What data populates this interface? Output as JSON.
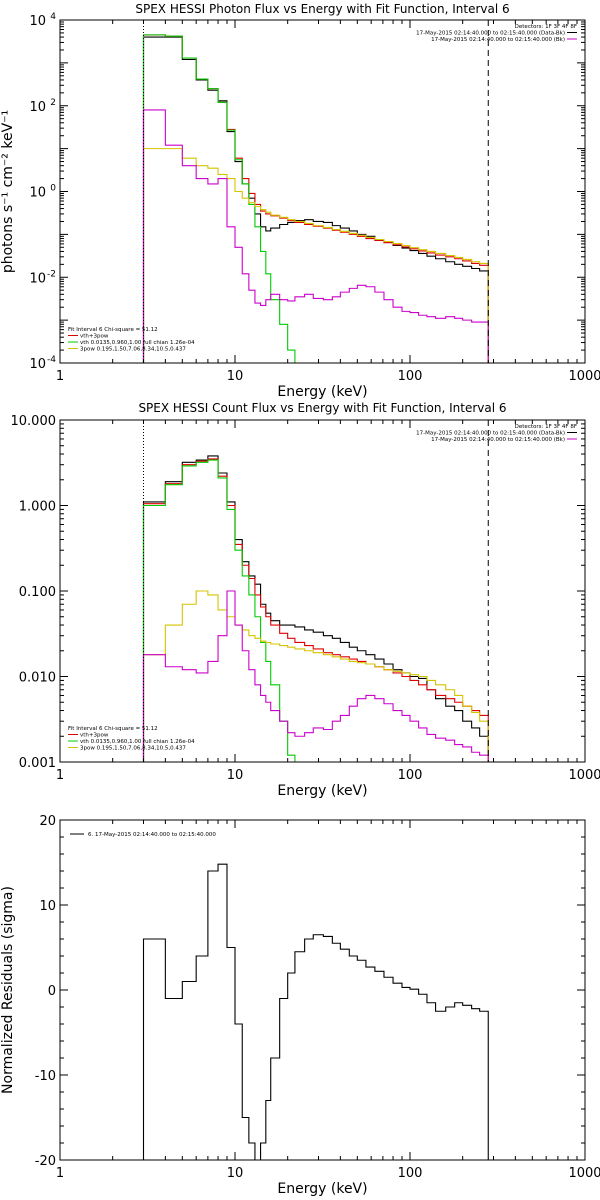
{
  "colors": {
    "observed": "#000000",
    "total": "#dd0000",
    "thermal": "#00cc00",
    "powerlaw": "#d4c400",
    "background": "#cc00cc"
  },
  "chart_data": [
    {
      "type": "line",
      "title": "SPEX HESSI Photon Flux vs Energy with Fit Function, Interval 6",
      "xlabel": "Energy (keV)",
      "ylabel": "photons s⁻¹ cm⁻² keV⁻¹",
      "xscale": "log",
      "yscale": "log",
      "xlim": [
        1,
        1000
      ],
      "ylim": [
        0.0001,
        10000
      ],
      "xticks": [
        {
          "v": 1,
          "t": "1"
        },
        {
          "v": 10,
          "t": "10"
        },
        {
          "v": 100,
          "t": "100"
        },
        {
          "v": 1000,
          "t": "1000"
        }
      ],
      "yticks": [
        {
          "v": 0.0001,
          "b": "10",
          "e": "-4"
        },
        {
          "v": 0.01,
          "b": "10",
          "e": "-2"
        },
        {
          "v": 1,
          "b": "10",
          "e": "0"
        },
        {
          "v": 100,
          "b": "10",
          "e": "2"
        },
        {
          "v": 10000,
          "b": "10",
          "e": "4"
        }
      ],
      "vlines": [
        {
          "x": 3,
          "style": "dotted"
        },
        {
          "x": 280,
          "style": "dashed"
        }
      ],
      "legend_tr": {
        "header": "Detectors: 1F 3F 4F 8F",
        "entries": [
          {
            "text": "17-May-2015 02:14:40.000 to 02:15:40.000 (Data-Bk)",
            "color": "#000000"
          },
          {
            "text": "17-May-2015 02:14:40.000 to 02:15:40.000 (Bk)",
            "color": "#cc00cc"
          }
        ]
      },
      "legend_bl": {
        "header": "Fit Interval 6    Chi-square = 51.12",
        "entries": [
          {
            "text": "vth+3pow",
            "color": "#dd0000"
          },
          {
            "text": "vth 0.0135,0.960,1.00  full chian 1.26e-04",
            "color": "#00cc00"
          },
          {
            "text": "3pow 0.195,1.50,7.06,8.34,10.5,0.437",
            "color": "#d4c400"
          }
        ]
      },
      "edges": [
        3,
        4,
        5,
        6,
        7,
        8,
        9,
        10,
        11,
        12,
        13,
        14,
        15,
        16,
        18,
        20,
        22,
        25,
        28,
        32,
        36,
        40,
        45,
        50,
        56,
        63,
        71,
        80,
        90,
        100,
        112,
        125,
        140,
        160,
        180,
        200,
        225,
        250,
        280
      ],
      "series": [
        {
          "name": "Data-Bk",
          "color": "#000000",
          "values": [
            4000,
            4000,
            1200,
            400,
            230,
            130,
            25,
            5,
            1.5,
            0.7,
            0.3,
            0.15,
            0.12,
            0.14,
            0.17,
            0.19,
            0.21,
            0.22,
            0.2,
            0.19,
            0.16,
            0.14,
            0.12,
            0.1,
            0.09,
            0.075,
            0.065,
            0.055,
            0.048,
            0.042,
            0.036,
            0.031,
            0.027,
            0.023,
            0.02,
            0.018,
            0.016,
            0.014
          ]
        },
        {
          "name": "vth+3pow",
          "color": "#dd0000",
          "values": [
            4500,
            4200,
            1300,
            420,
            250,
            120,
            28,
            6,
            2,
            0.9,
            0.5,
            0.35,
            0.3,
            0.27,
            0.24,
            0.21,
            0.19,
            0.17,
            0.155,
            0.14,
            0.125,
            0.112,
            0.1,
            0.09,
            0.08,
            0.072,
            0.064,
            0.057,
            0.051,
            0.046,
            0.041,
            0.037,
            0.033,
            0.03,
            0.027,
            0.024,
            0.021,
            0.019
          ]
        },
        {
          "name": "vth",
          "color": "#00cc00",
          "values": [
            4500,
            4200,
            1300,
            420,
            250,
            120,
            27,
            5.5,
            1.5,
            0.5,
            0.15,
            0.04,
            0.012,
            0.003,
            0.0008,
            0.0002,
            5e-05
          ]
        },
        {
          "name": "3pow",
          "color": "#d4c400",
          "values": [
            10,
            10,
            6,
            4,
            3.5,
            2.5,
            2,
            1,
            0.7,
            0.55,
            0.45,
            0.38,
            0.33,
            0.28,
            0.25,
            0.22,
            0.2,
            0.18,
            0.16,
            0.145,
            0.13,
            0.118,
            0.105,
            0.095,
            0.085,
            0.076,
            0.068,
            0.061,
            0.055,
            0.049,
            0.044,
            0.04,
            0.036,
            0.032,
            0.029,
            0.026,
            0.023,
            0.021
          ]
        },
        {
          "name": "Bk",
          "color": "#cc00cc",
          "values": [
            80,
            12,
            4,
            2,
            1.5,
            2,
            0.15,
            0.05,
            0.012,
            0.005,
            0.0025,
            0.0022,
            0.003,
            0.004,
            0.003,
            0.0028,
            0.0035,
            0.004,
            0.0032,
            0.003,
            0.0035,
            0.0045,
            0.0055,
            0.0065,
            0.006,
            0.0045,
            0.003,
            0.002,
            0.0016,
            0.0015,
            0.0013,
            0.0012,
            0.0011,
            0.0012,
            0.0011,
            0.001,
            0.0009,
            0.0009
          ]
        }
      ]
    },
    {
      "type": "line",
      "title": "SPEX HESSI Count Flux vs Energy with Fit Function, Interval 6",
      "xlabel": "Energy (keV)",
      "xscale": "log",
      "yscale": "log",
      "xlim": [
        1,
        1000
      ],
      "ylim": [
        0.001,
        10
      ],
      "xticks": [
        {
          "v": 1,
          "t": "1"
        },
        {
          "v": 10,
          "t": "10"
        },
        {
          "v": 100,
          "t": "100"
        },
        {
          "v": 1000,
          "t": "1000"
        }
      ],
      "yticks": [
        {
          "v": 0.001,
          "t": "0.001"
        },
        {
          "v": 0.01,
          "t": "0.010"
        },
        {
          "v": 0.1,
          "t": "0.100"
        },
        {
          "v": 1,
          "t": "1.000"
        },
        {
          "v": 10,
          "t": "10.000"
        }
      ],
      "vlines": [
        {
          "x": 3,
          "style": "dotted"
        },
        {
          "x": 280,
          "style": "dashed"
        }
      ],
      "legend_tr": {
        "header": "Detectors: 1F 3F 4F 8F",
        "entries": [
          {
            "text": "17-May-2015 02:14:40.000 to 02:15:40.000 (Data-Bk)",
            "color": "#000000"
          },
          {
            "text": "17-May-2015 02:14:40.000 to 02:15:40.000 (Bk)",
            "color": "#cc00cc"
          }
        ]
      },
      "legend_bl": {
        "header": "Fit Interval 6    Chi-square = 51.12",
        "entries": [
          {
            "text": "vth+3pow",
            "color": "#dd0000"
          },
          {
            "text": "vth 0.0135,0.960,1.00  full chian 1.26e-04",
            "color": "#00cc00"
          },
          {
            "text": "3pow 0.195,1.50,7.06,8.34,10.5,0.437",
            "color": "#d4c400"
          }
        ]
      },
      "edges": [
        3,
        4,
        5,
        6,
        7,
        8,
        9,
        10,
        11,
        12,
        13,
        14,
        15,
        16,
        18,
        20,
        22,
        25,
        28,
        32,
        36,
        40,
        45,
        50,
        56,
        63,
        71,
        80,
        90,
        100,
        112,
        125,
        140,
        160,
        180,
        200,
        225,
        250,
        280
      ],
      "series": [
        {
          "name": "Data-Bk",
          "color": "#000000",
          "values": [
            1.1,
            1.9,
            3.2,
            3.4,
            3.8,
            2.4,
            1.1,
            0.4,
            0.22,
            0.15,
            0.12,
            0.07,
            0.055,
            0.045,
            0.04,
            0.04,
            0.038,
            0.035,
            0.033,
            0.03,
            0.028,
            0.025,
            0.022,
            0.02,
            0.018,
            0.016,
            0.014,
            0.012,
            0.011,
            0.01,
            0.0095,
            0.007,
            0.0055,
            0.0045,
            0.004,
            0.003,
            0.0025,
            0.002
          ]
        },
        {
          "name": "vth+3pow",
          "color": "#dd0000",
          "values": [
            1.05,
            1.8,
            3.0,
            3.3,
            3.5,
            2.2,
            1.0,
            0.35,
            0.2,
            0.14,
            0.09,
            0.065,
            0.05,
            0.04,
            0.032,
            0.028,
            0.025,
            0.023,
            0.021,
            0.019,
            0.018,
            0.017,
            0.016,
            0.015,
            0.014,
            0.013,
            0.012,
            0.011,
            0.01,
            0.009,
            0.008,
            0.007,
            0.006,
            0.0055,
            0.005,
            0.0045,
            0.004,
            0.0035
          ]
        },
        {
          "name": "vth",
          "color": "#00cc00",
          "values": [
            1.0,
            1.75,
            2.9,
            3.2,
            3.4,
            2.1,
            0.9,
            0.3,
            0.15,
            0.09,
            0.05,
            0.025,
            0.015,
            0.008,
            0.003,
            0.0012,
            0.0005
          ]
        },
        {
          "name": "3pow",
          "color": "#d4c400",
          "values": [
            0.018,
            0.04,
            0.07,
            0.1,
            0.09,
            0.06,
            0.05,
            0.04,
            0.035,
            0.03,
            0.028,
            0.026,
            0.025,
            0.024,
            0.023,
            0.022,
            0.021,
            0.02,
            0.019,
            0.018,
            0.017,
            0.016,
            0.015,
            0.0145,
            0.014,
            0.013,
            0.012,
            0.0115,
            0.011,
            0.0105,
            0.01,
            0.009,
            0.008,
            0.007,
            0.006,
            0.0045,
            0.0038,
            0.003
          ]
        },
        {
          "name": "Bk",
          "color": "#cc00cc",
          "values": [
            0.018,
            0.013,
            0.012,
            0.011,
            0.015,
            0.03,
            0.1,
            0.04,
            0.02,
            0.012,
            0.008,
            0.006,
            0.005,
            0.004,
            0.003,
            0.0022,
            0.002,
            0.0022,
            0.0025,
            0.0024,
            0.003,
            0.0035,
            0.0045,
            0.0055,
            0.006,
            0.0055,
            0.0048,
            0.004,
            0.0035,
            0.003,
            0.0025,
            0.0021,
            0.0019,
            0.0018,
            0.0016,
            0.0015,
            0.0013,
            0.0012
          ]
        }
      ]
    },
    {
      "type": "line",
      "title": "",
      "xlabel": "Energy (keV)",
      "ylabel": "Normalized Residuals (sigma)",
      "xscale": "log",
      "yscale": "linear",
      "xlim": [
        1,
        1000
      ],
      "ylim": [
        -20,
        20
      ],
      "xticks": [
        {
          "v": 1,
          "t": "1"
        },
        {
          "v": 10,
          "t": "10"
        },
        {
          "v": 100,
          "t": "100"
        },
        {
          "v": 1000,
          "t": "1000"
        }
      ],
      "yticks": [
        {
          "v": -20,
          "t": "-20"
        },
        {
          "v": -10,
          "t": "-10"
        },
        {
          "v": 0,
          "t": "0"
        },
        {
          "v": 10,
          "t": "10"
        },
        {
          "v": 20,
          "t": "20"
        }
      ],
      "legend_tl": {
        "entries": [
          {
            "text": "6. 17-May-2015 02:14:40.000 to 02:15:40.000",
            "color": "#000000"
          }
        ]
      },
      "edges": [
        3,
        4,
        5,
        6,
        7,
        8,
        9,
        10,
        11,
        12,
        13,
        14,
        15,
        16,
        18,
        20,
        22,
        25,
        28,
        32,
        36,
        40,
        45,
        50,
        56,
        63,
        71,
        80,
        90,
        100,
        112,
        125,
        140,
        160,
        180,
        200,
        225,
        250,
        280
      ],
      "series": [
        {
          "name": "residual",
          "color": "#000000",
          "values": [
            6,
            -1,
            1,
            4,
            14,
            14.8,
            5,
            -4,
            -15,
            -18,
            -20,
            -18,
            -13,
            -8,
            -1,
            2,
            4.5,
            6,
            6.5,
            6.3,
            5.5,
            4.8,
            4,
            3.5,
            2.7,
            2.2,
            1.5,
            0.8,
            0.3,
            0.1,
            -0.5,
            -1.5,
            -2.5,
            -2,
            -1.5,
            -1.8,
            -2.2,
            -2.5
          ]
        }
      ]
    }
  ]
}
